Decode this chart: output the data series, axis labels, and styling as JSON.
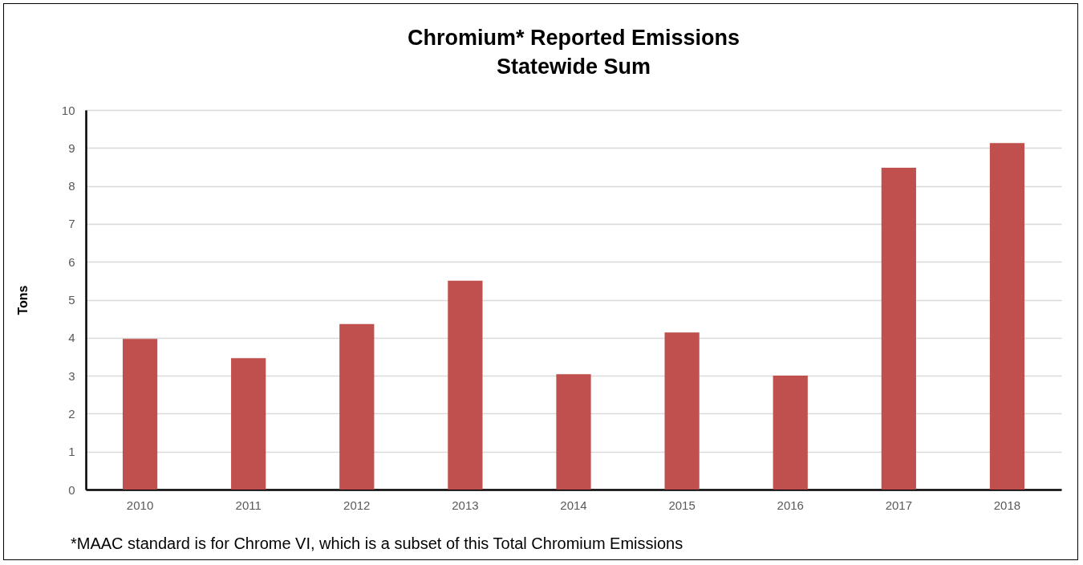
{
  "chart_data": {
    "type": "bar",
    "title": [
      "Chromium* Reported Emissions",
      "Statewide Sum"
    ],
    "ylabel": "Tons",
    "categories": [
      "2010",
      "2011",
      "2012",
      "2013",
      "2014",
      "2015",
      "2016",
      "2017",
      "2018"
    ],
    "values": [
      3.97,
      3.46,
      4.36,
      5.5,
      3.04,
      4.14,
      3.0,
      8.48,
      9.13
    ],
    "color": "#c0504d",
    "ylim": [
      0,
      10
    ],
    "yticks": [
      0,
      1,
      2,
      3,
      4,
      5,
      6,
      7,
      8,
      9,
      10
    ],
    "grid": "y",
    "annotations": [
      "*MAAC standard is for Chrome VI, which is a subset of this Total Chromium Emissions"
    ]
  }
}
